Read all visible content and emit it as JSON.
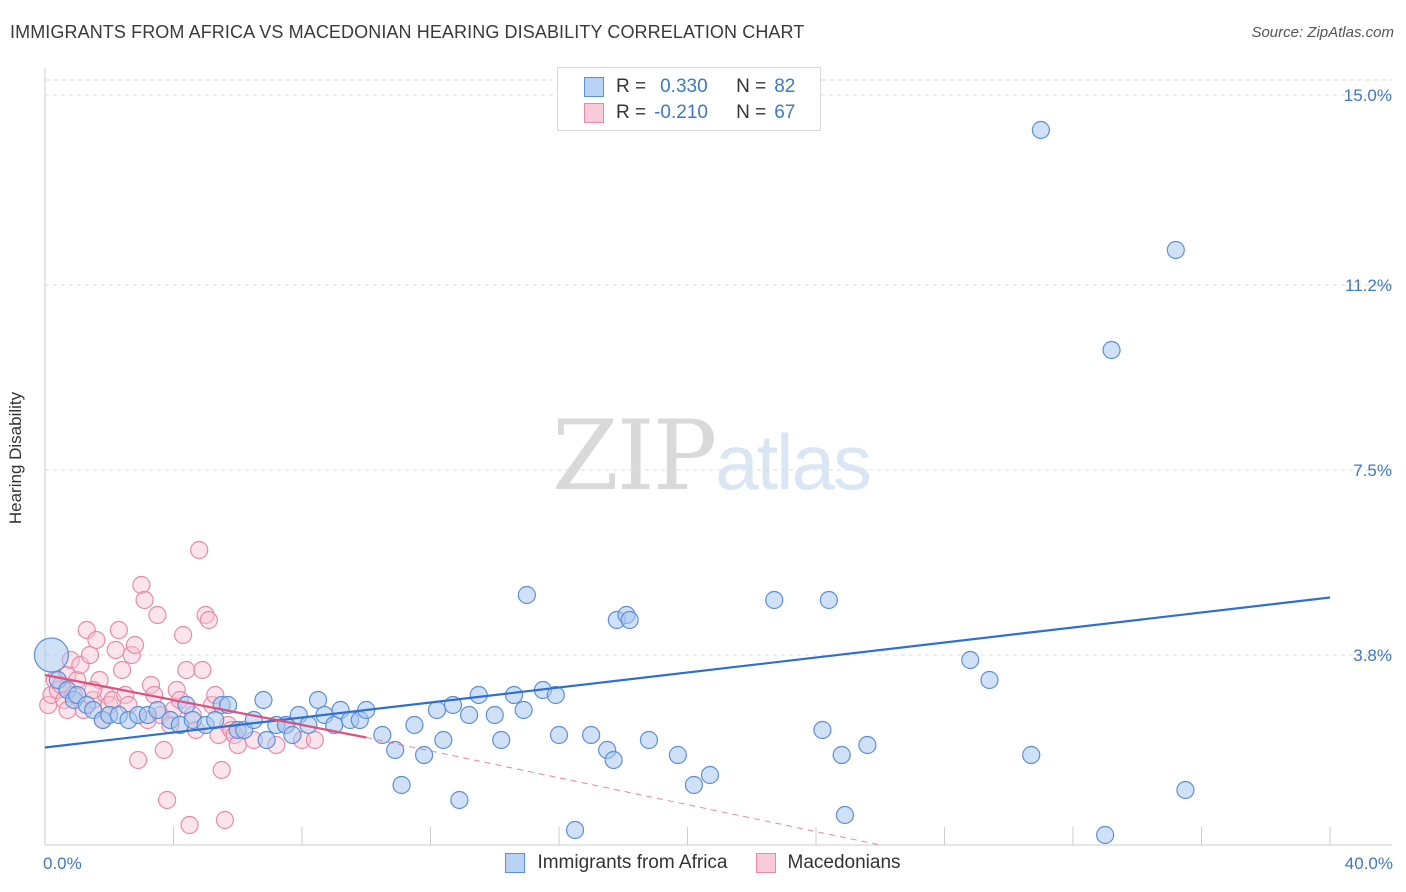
{
  "header": {
    "title": "IMMIGRANTS FROM AFRICA VS MACEDONIAN HEARING DISABILITY CORRELATION CHART",
    "source": "Source: ZipAtlas.com"
  },
  "watermark": {
    "zip": "ZIP",
    "atlas": "atlas"
  },
  "legend": {
    "r_label": "R =",
    "n_label": "N =",
    "series1": {
      "r": "0.330",
      "n": "82"
    },
    "series2": {
      "r": "-0.210",
      "n": "67"
    }
  },
  "bottom_legend": {
    "series1": "Immigrants from Africa",
    "series2": "Macedonians"
  },
  "chart_data": {
    "type": "scatter",
    "title": "IMMIGRANTS FROM AFRICA VS MACEDONIAN HEARING DISABILITY CORRELATION CHART",
    "xlabel": "",
    "ylabel": "Hearing Disability",
    "xlim": [
      0,
      40
    ],
    "ylim": [
      0,
      15.3
    ],
    "x_tick_labels": [
      "0.0%",
      "40.0%"
    ],
    "y_ticks": [
      3.8,
      7.5,
      11.2,
      15.0
    ],
    "y_tick_labels": [
      "3.8%",
      "7.5%",
      "11.2%",
      "15.0%"
    ],
    "grid": true,
    "colors": {
      "series1": "#5b8fd6",
      "series1_fill": "#a9c6ee",
      "series1_line": "#2f6fd0",
      "series2": "#e88aa8",
      "series2_fill": "#f6c3d3",
      "series2_line": "#e0507e",
      "axis_text": "#3d78c9"
    },
    "series": [
      {
        "name": "Immigrants from Africa",
        "trend": {
          "x": [
            0,
            40
          ],
          "y": [
            1.95,
            4.95
          ]
        },
        "points": [
          [
            0.2,
            3.8
          ],
          [
            0.4,
            3.3
          ],
          [
            0.7,
            3.1
          ],
          [
            0.9,
            2.9
          ],
          [
            1.0,
            3.0
          ],
          [
            1.3,
            2.8
          ],
          [
            1.5,
            2.7
          ],
          [
            1.8,
            2.5
          ],
          [
            2.0,
            2.6
          ],
          [
            2.3,
            2.6
          ],
          [
            2.6,
            2.5
          ],
          [
            2.9,
            2.6
          ],
          [
            3.2,
            2.6
          ],
          [
            3.5,
            2.7
          ],
          [
            3.9,
            2.5
          ],
          [
            4.2,
            2.4
          ],
          [
            4.4,
            2.8
          ],
          [
            4.6,
            2.5
          ],
          [
            5.0,
            2.4
          ],
          [
            5.3,
            2.5
          ],
          [
            5.5,
            2.8
          ],
          [
            5.7,
            2.8
          ],
          [
            6.0,
            2.3
          ],
          [
            6.2,
            2.3
          ],
          [
            6.5,
            2.5
          ],
          [
            6.8,
            2.9
          ],
          [
            6.9,
            2.1
          ],
          [
            7.2,
            2.4
          ],
          [
            7.5,
            2.4
          ],
          [
            7.7,
            2.2
          ],
          [
            7.9,
            2.6
          ],
          [
            8.2,
            2.4
          ],
          [
            8.5,
            2.9
          ],
          [
            8.7,
            2.6
          ],
          [
            9.0,
            2.4
          ],
          [
            9.2,
            2.7
          ],
          [
            9.5,
            2.5
          ],
          [
            9.8,
            2.5
          ],
          [
            10.0,
            2.7
          ],
          [
            10.5,
            2.2
          ],
          [
            10.9,
            1.9
          ],
          [
            11.1,
            1.2
          ],
          [
            11.5,
            2.4
          ],
          [
            11.8,
            1.8
          ],
          [
            12.2,
            2.7
          ],
          [
            12.4,
            2.1
          ],
          [
            12.7,
            2.8
          ],
          [
            12.9,
            0.9
          ],
          [
            13.2,
            2.6
          ],
          [
            13.5,
            3.0
          ],
          [
            14.0,
            2.6
          ],
          [
            14.2,
            2.1
          ],
          [
            14.6,
            3.0
          ],
          [
            14.9,
            2.7
          ],
          [
            15.0,
            5.0
          ],
          [
            15.5,
            3.1
          ],
          [
            15.9,
            3.0
          ],
          [
            16.0,
            2.2
          ],
          [
            16.5,
            0.3
          ],
          [
            17.0,
            2.2
          ],
          [
            17.5,
            1.9
          ],
          [
            17.7,
            1.7
          ],
          [
            17.8,
            4.5
          ],
          [
            18.1,
            4.6
          ],
          [
            18.2,
            4.5
          ],
          [
            18.8,
            2.1
          ],
          [
            19.7,
            1.8
          ],
          [
            20.2,
            1.2
          ],
          [
            20.7,
            1.4
          ],
          [
            22.7,
            4.9
          ],
          [
            24.2,
            2.3
          ],
          [
            24.4,
            4.9
          ],
          [
            24.8,
            1.8
          ],
          [
            24.9,
            0.6
          ],
          [
            25.6,
            2.0
          ],
          [
            28.8,
            3.7
          ],
          [
            29.4,
            3.3
          ],
          [
            30.7,
            1.8
          ],
          [
            31.0,
            14.3
          ],
          [
            33.0,
            0.2
          ],
          [
            33.2,
            9.9
          ],
          [
            35.2,
            11.9
          ],
          [
            35.5,
            1.1
          ]
        ]
      },
      {
        "name": "Macedonians",
        "trend": {
          "x": [
            0,
            10
          ],
          "y": [
            3.4,
            2.15
          ]
        },
        "trend_extension": {
          "x": [
            10,
            26
          ],
          "y": [
            2.15,
            0.0
          ]
        },
        "points": [
          [
            0.1,
            2.8
          ],
          [
            0.2,
            3.0
          ],
          [
            0.3,
            3.3
          ],
          [
            0.4,
            3.1
          ],
          [
            0.5,
            3.2
          ],
          [
            0.6,
            2.9
          ],
          [
            0.7,
            3.4
          ],
          [
            0.8,
            3.7
          ],
          [
            0.9,
            3.0
          ],
          [
            1.0,
            3.3
          ],
          [
            1.1,
            3.6
          ],
          [
            1.2,
            2.7
          ],
          [
            1.3,
            4.3
          ],
          [
            1.4,
            3.8
          ],
          [
            1.5,
            2.9
          ],
          [
            1.6,
            4.1
          ],
          [
            1.7,
            3.3
          ],
          [
            1.8,
            2.5
          ],
          [
            1.9,
            3.0
          ],
          [
            2.0,
            2.8
          ],
          [
            2.1,
            2.9
          ],
          [
            2.2,
            3.9
          ],
          [
            2.3,
            4.3
          ],
          [
            2.4,
            3.5
          ],
          [
            2.5,
            3.0
          ],
          [
            2.6,
            2.8
          ],
          [
            2.7,
            3.8
          ],
          [
            2.8,
            4.0
          ],
          [
            2.9,
            1.7
          ],
          [
            3.0,
            5.2
          ],
          [
            3.1,
            4.9
          ],
          [
            3.2,
            2.5
          ],
          [
            3.3,
            3.2
          ],
          [
            3.4,
            3.0
          ],
          [
            3.5,
            4.6
          ],
          [
            3.6,
            2.6
          ],
          [
            3.7,
            1.9
          ],
          [
            3.8,
            0.9
          ],
          [
            3.9,
            2.4
          ],
          [
            4.0,
            2.7
          ],
          [
            4.1,
            3.1
          ],
          [
            4.2,
            2.9
          ],
          [
            4.3,
            4.2
          ],
          [
            4.4,
            3.5
          ],
          [
            4.5,
            0.4
          ],
          [
            4.6,
            2.6
          ],
          [
            4.7,
            2.3
          ],
          [
            4.8,
            5.9
          ],
          [
            4.9,
            3.5
          ],
          [
            5.0,
            4.6
          ],
          [
            5.1,
            4.5
          ],
          [
            5.2,
            2.8
          ],
          [
            5.3,
            3.0
          ],
          [
            5.4,
            2.2
          ],
          [
            5.5,
            1.5
          ],
          [
            5.6,
            0.5
          ],
          [
            5.7,
            2.4
          ],
          [
            5.8,
            2.3
          ],
          [
            5.9,
            2.2
          ],
          [
            6.0,
            2.0
          ],
          [
            6.5,
            2.1
          ],
          [
            7.2,
            2.0
          ],
          [
            7.5,
            2.4
          ],
          [
            8.0,
            2.1
          ],
          [
            8.4,
            2.1
          ],
          [
            1.5,
            3.1
          ],
          [
            0.7,
            2.7
          ]
        ]
      }
    ]
  }
}
